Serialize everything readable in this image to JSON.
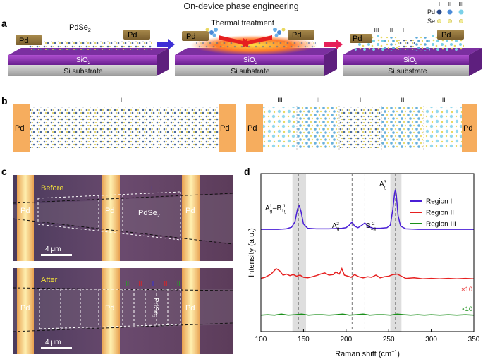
{
  "figure_title": "On-device phase engineering",
  "panel_a": {
    "label": "a",
    "material": "PdSe",
    "material_sub": "2",
    "electrode": "Pd",
    "oxide": "SiO",
    "oxide_sub": "2",
    "substrate": "Si substrate",
    "treatment": "Thermal treatment",
    "region_labels": [
      "III",
      "II",
      "I"
    ],
    "legend": {
      "columns": [
        "I",
        "II",
        "III"
      ],
      "rows": [
        "Pd",
        "Se"
      ]
    }
  },
  "panel_b": {
    "label": "b",
    "electrode": "Pd",
    "left_region": "I",
    "right_regions": [
      "III",
      "II",
      "I",
      "II",
      "III"
    ]
  },
  "panel_c": {
    "label": "c",
    "before": "Before",
    "after": "After",
    "electrode": "Pd",
    "region_I": "I",
    "material": "PdSe",
    "material_sub": "2",
    "scale": "4 μm",
    "after_marks": [
      "III",
      "II",
      "I",
      "II",
      "III"
    ]
  },
  "panel_d": {
    "label": "d",
    "peak_labels": {
      "ag1": "A",
      "ag1_sub": "g",
      "ag1_sup": "1",
      "sep": "–",
      "bg1": "B",
      "bg1_sub": "1g",
      "bg1_sup": "1",
      "ag2": "A",
      "ag2_sub": "g",
      "ag2_sup": "2",
      "bg2": "B",
      "bg2_sub": "1g",
      "bg2_sup": "2",
      "ag3": "A",
      "ag3_sub": "g",
      "ag3_sup": "3"
    },
    "scale_labels": [
      "×10",
      "×10"
    ]
  },
  "chart_data": {
    "type": "line",
    "xlabel": "Raman shift (cm",
    "xlabel_sup": "−1",
    "xlabel_tail": ")",
    "ylabel": "Intensity (a.u.)",
    "xlim": [
      100,
      350
    ],
    "xticks": [
      100,
      150,
      200,
      250,
      300,
      350
    ],
    "shaded_bands": [
      [
        137,
        153
      ],
      [
        252,
        265
      ]
    ],
    "dashed_lines": [
      144,
      207,
      222,
      258
    ],
    "series": [
      {
        "name": "Region I",
        "color": "#4a1fd6",
        "offset": 0.64,
        "x": [
          100,
          120,
          130,
          136,
          140,
          143,
          145,
          147,
          150,
          155,
          165,
          180,
          195,
          200,
          204,
          207,
          210,
          214,
          218,
          222,
          226,
          232,
          240,
          248,
          252,
          255,
          257,
          258,
          259,
          261,
          264,
          270,
          285,
          300,
          320,
          350
        ],
        "y": [
          0.02,
          0.02,
          0.03,
          0.06,
          0.16,
          0.4,
          0.46,
          0.36,
          0.12,
          0.04,
          0.03,
          0.03,
          0.04,
          0.05,
          0.1,
          0.16,
          0.08,
          0.05,
          0.09,
          0.14,
          0.07,
          0.04,
          0.04,
          0.05,
          0.1,
          0.4,
          0.7,
          0.76,
          0.66,
          0.28,
          0.08,
          0.03,
          0.02,
          0.02,
          0.02,
          0.02
        ]
      },
      {
        "name": "Region II",
        "color": "#e62020",
        "offset": 0.33,
        "x": [
          100,
          105,
          112,
          118,
          122,
          126,
          130,
          134,
          138,
          142,
          146,
          150,
          155,
          160,
          165,
          170,
          175,
          180,
          185,
          188,
          192,
          195,
          198,
          202,
          206,
          210,
          215,
          220,
          225,
          230,
          235,
          240,
          245,
          250,
          255,
          260,
          265,
          270,
          280,
          290,
          300,
          310,
          320,
          330,
          340,
          350
        ],
        "y": [
          0.02,
          0.04,
          0.1,
          0.2,
          0.16,
          0.08,
          0.1,
          0.07,
          0.09,
          0.06,
          0.08,
          0.04,
          0.03,
          0.05,
          0.07,
          0.1,
          0.12,
          0.08,
          0.09,
          0.14,
          0.1,
          0.2,
          0.08,
          0.06,
          0.04,
          0.09,
          0.05,
          0.03,
          0.05,
          0.04,
          0.08,
          0.03,
          0.05,
          0.06,
          0.09,
          0.1,
          0.06,
          0.02,
          0.03,
          0.01,
          0.02,
          0.01,
          0.02,
          0.01,
          0.02,
          0.01
        ]
      },
      {
        "name": "Region III",
        "color": "#1a8f1a",
        "offset": 0.1,
        "x": [
          100,
          108,
          116,
          124,
          132,
          140,
          148,
          156,
          164,
          172,
          180,
          188,
          196,
          204,
          212,
          220,
          228,
          236,
          244,
          252,
          260,
          268,
          276,
          284,
          292,
          300,
          310,
          320,
          330,
          340,
          350
        ],
        "y": [
          0.01,
          0.02,
          0.01,
          0.03,
          0.01,
          0.02,
          0.03,
          0.01,
          0.02,
          0.02,
          0.01,
          0.02,
          0.03,
          0.01,
          0.02,
          0.03,
          0.01,
          0.02,
          0.02,
          0.01,
          0.03,
          0.02,
          0.01,
          0.02,
          0.01,
          0.02,
          0.01,
          0.02,
          0.01,
          0.02,
          0.01
        ]
      }
    ]
  },
  "colors": {
    "purple": "#5a3fbf",
    "red": "#e62020",
    "green": "#1a8f1a",
    "pd": "#f4b266",
    "sio2": "#8a3cb0",
    "si": "#b8b8b8"
  }
}
